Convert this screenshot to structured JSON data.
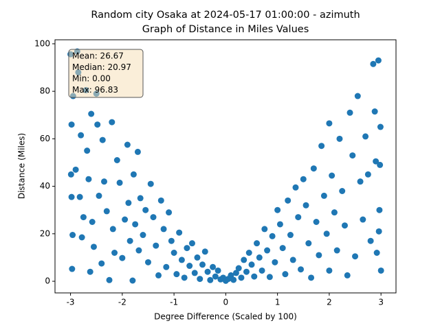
{
  "chart_data": {
    "type": "scatter",
    "title": "Random city Osaka at 2024-05-17 01:00:00  - azimuth",
    "subtitle": "Graph of Distance in Miles Values",
    "xlabel": "Degree Difference (Scaled by 100)",
    "ylabel": "Distance (Miles)",
    "stats": [
      "Mean: 26.67",
      "Median: 20.97",
      "Min: 0.00",
      "Max: 96.83"
    ],
    "xlim": [
      -3.3,
      3.29
    ],
    "ylim": [
      -4.9,
      101.7
    ],
    "xticks": [
      -3,
      -2,
      -1,
      0,
      1,
      2,
      3
    ],
    "yticks": [
      0,
      20,
      40,
      60,
      80,
      100
    ],
    "color": "#1f77b4",
    "x": [
      -3.0,
      -2.87,
      -2.95,
      -2.98,
      -2.99,
      -2.98,
      -2.96,
      -2.97,
      -2.85,
      -2.9,
      -2.8,
      -2.82,
      -2.78,
      -2.75,
      -2.7,
      -2.68,
      -2.65,
      -2.62,
      -2.6,
      -2.58,
      -2.55,
      -2.5,
      -2.48,
      -2.45,
      -2.4,
      -2.38,
      -2.35,
      -2.3,
      -2.25,
      -2.2,
      -2.18,
      -2.15,
      -2.1,
      -2.05,
      -2.0,
      -1.95,
      -1.9,
      -1.88,
      -1.85,
      -1.8,
      -1.78,
      -1.75,
      -1.7,
      -1.68,
      -1.65,
      -1.6,
      -1.55,
      -1.5,
      -1.45,
      -1.4,
      -1.35,
      -1.3,
      -1.25,
      -1.2,
      -1.15,
      -1.1,
      -1.05,
      -1.0,
      -0.95,
      -0.9,
      -0.85,
      -0.8,
      -0.75,
      -0.7,
      -0.65,
      -0.6,
      -0.55,
      -0.5,
      -0.45,
      -0.4,
      -0.35,
      -0.3,
      -0.25,
      -0.2,
      -0.15,
      -0.1,
      -0.05,
      0,
      0.05,
      0.1,
      0.15,
      0.2,
      0.25,
      0.3,
      0.35,
      0.4,
      0.45,
      0.5,
      0.55,
      0.6,
      0.65,
      0.7,
      0.75,
      0.8,
      0.85,
      0.9,
      0.95,
      1.0,
      1.05,
      1.1,
      1.15,
      1.2,
      1.25,
      1.3,
      1.35,
      1.4,
      1.45,
      1.5,
      1.55,
      1.6,
      1.65,
      1.7,
      1.75,
      1.8,
      1.85,
      1.9,
      1.95,
      2.0,
      2.0,
      2.05,
      2.1,
      2.15,
      2.2,
      2.25,
      2.3,
      2.35,
      2.4,
      2.45,
      2.5,
      2.55,
      2.6,
      2.65,
      2.7,
      2.75,
      2.8,
      2.85,
      2.88,
      2.9,
      2.92,
      2.95,
      2.97,
      2.99,
      3.0,
      2.98,
      2.96
    ],
    "values": [
      95.6,
      96.8,
      78,
      66,
      45,
      35.5,
      19.5,
      5.2,
      88,
      47,
      61.5,
      35.5,
      18.5,
      27,
      80.5,
      55,
      43,
      4,
      70.5,
      25,
      14.5,
      79,
      66,
      36,
      7.5,
      59.5,
      42,
      29.5,
      0.5,
      67,
      22,
      12,
      51,
      41.5,
      9.8,
      26,
      57.5,
      33,
      17,
      0.3,
      45,
      24,
      54.5,
      13,
      35,
      19.5,
      30,
      8,
      41,
      27,
      15,
      2.5,
      34,
      22,
      6,
      29,
      17,
      12,
      3,
      20.5,
      9,
      1.5,
      14,
      6.5,
      16,
      3.5,
      10,
      1,
      7,
      12.5,
      4,
      0.5,
      6,
      2,
      4.5,
      0.8,
      1.5,
      0.2,
      1,
      2.5,
      0.6,
      3.5,
      5.5,
      1.5,
      9,
      4,
      12,
      7,
      2,
      16,
      10,
      4.5,
      22,
      13,
      1.8,
      19,
      8,
      30,
      24,
      14,
      3,
      34,
      19.5,
      9,
      39.5,
      27,
      5,
      43,
      32,
      16,
      1.5,
      47.5,
      25,
      11,
      57,
      36,
      20,
      4.5,
      66.5,
      44.5,
      29,
      13,
      60,
      38,
      23.5,
      2.5,
      71,
      53,
      10.5,
      78,
      42,
      26,
      61,
      45,
      17,
      91.5,
      71.5,
      50.5,
      12,
      93,
      30,
      65,
      4.5,
      49,
      21
    ]
  }
}
